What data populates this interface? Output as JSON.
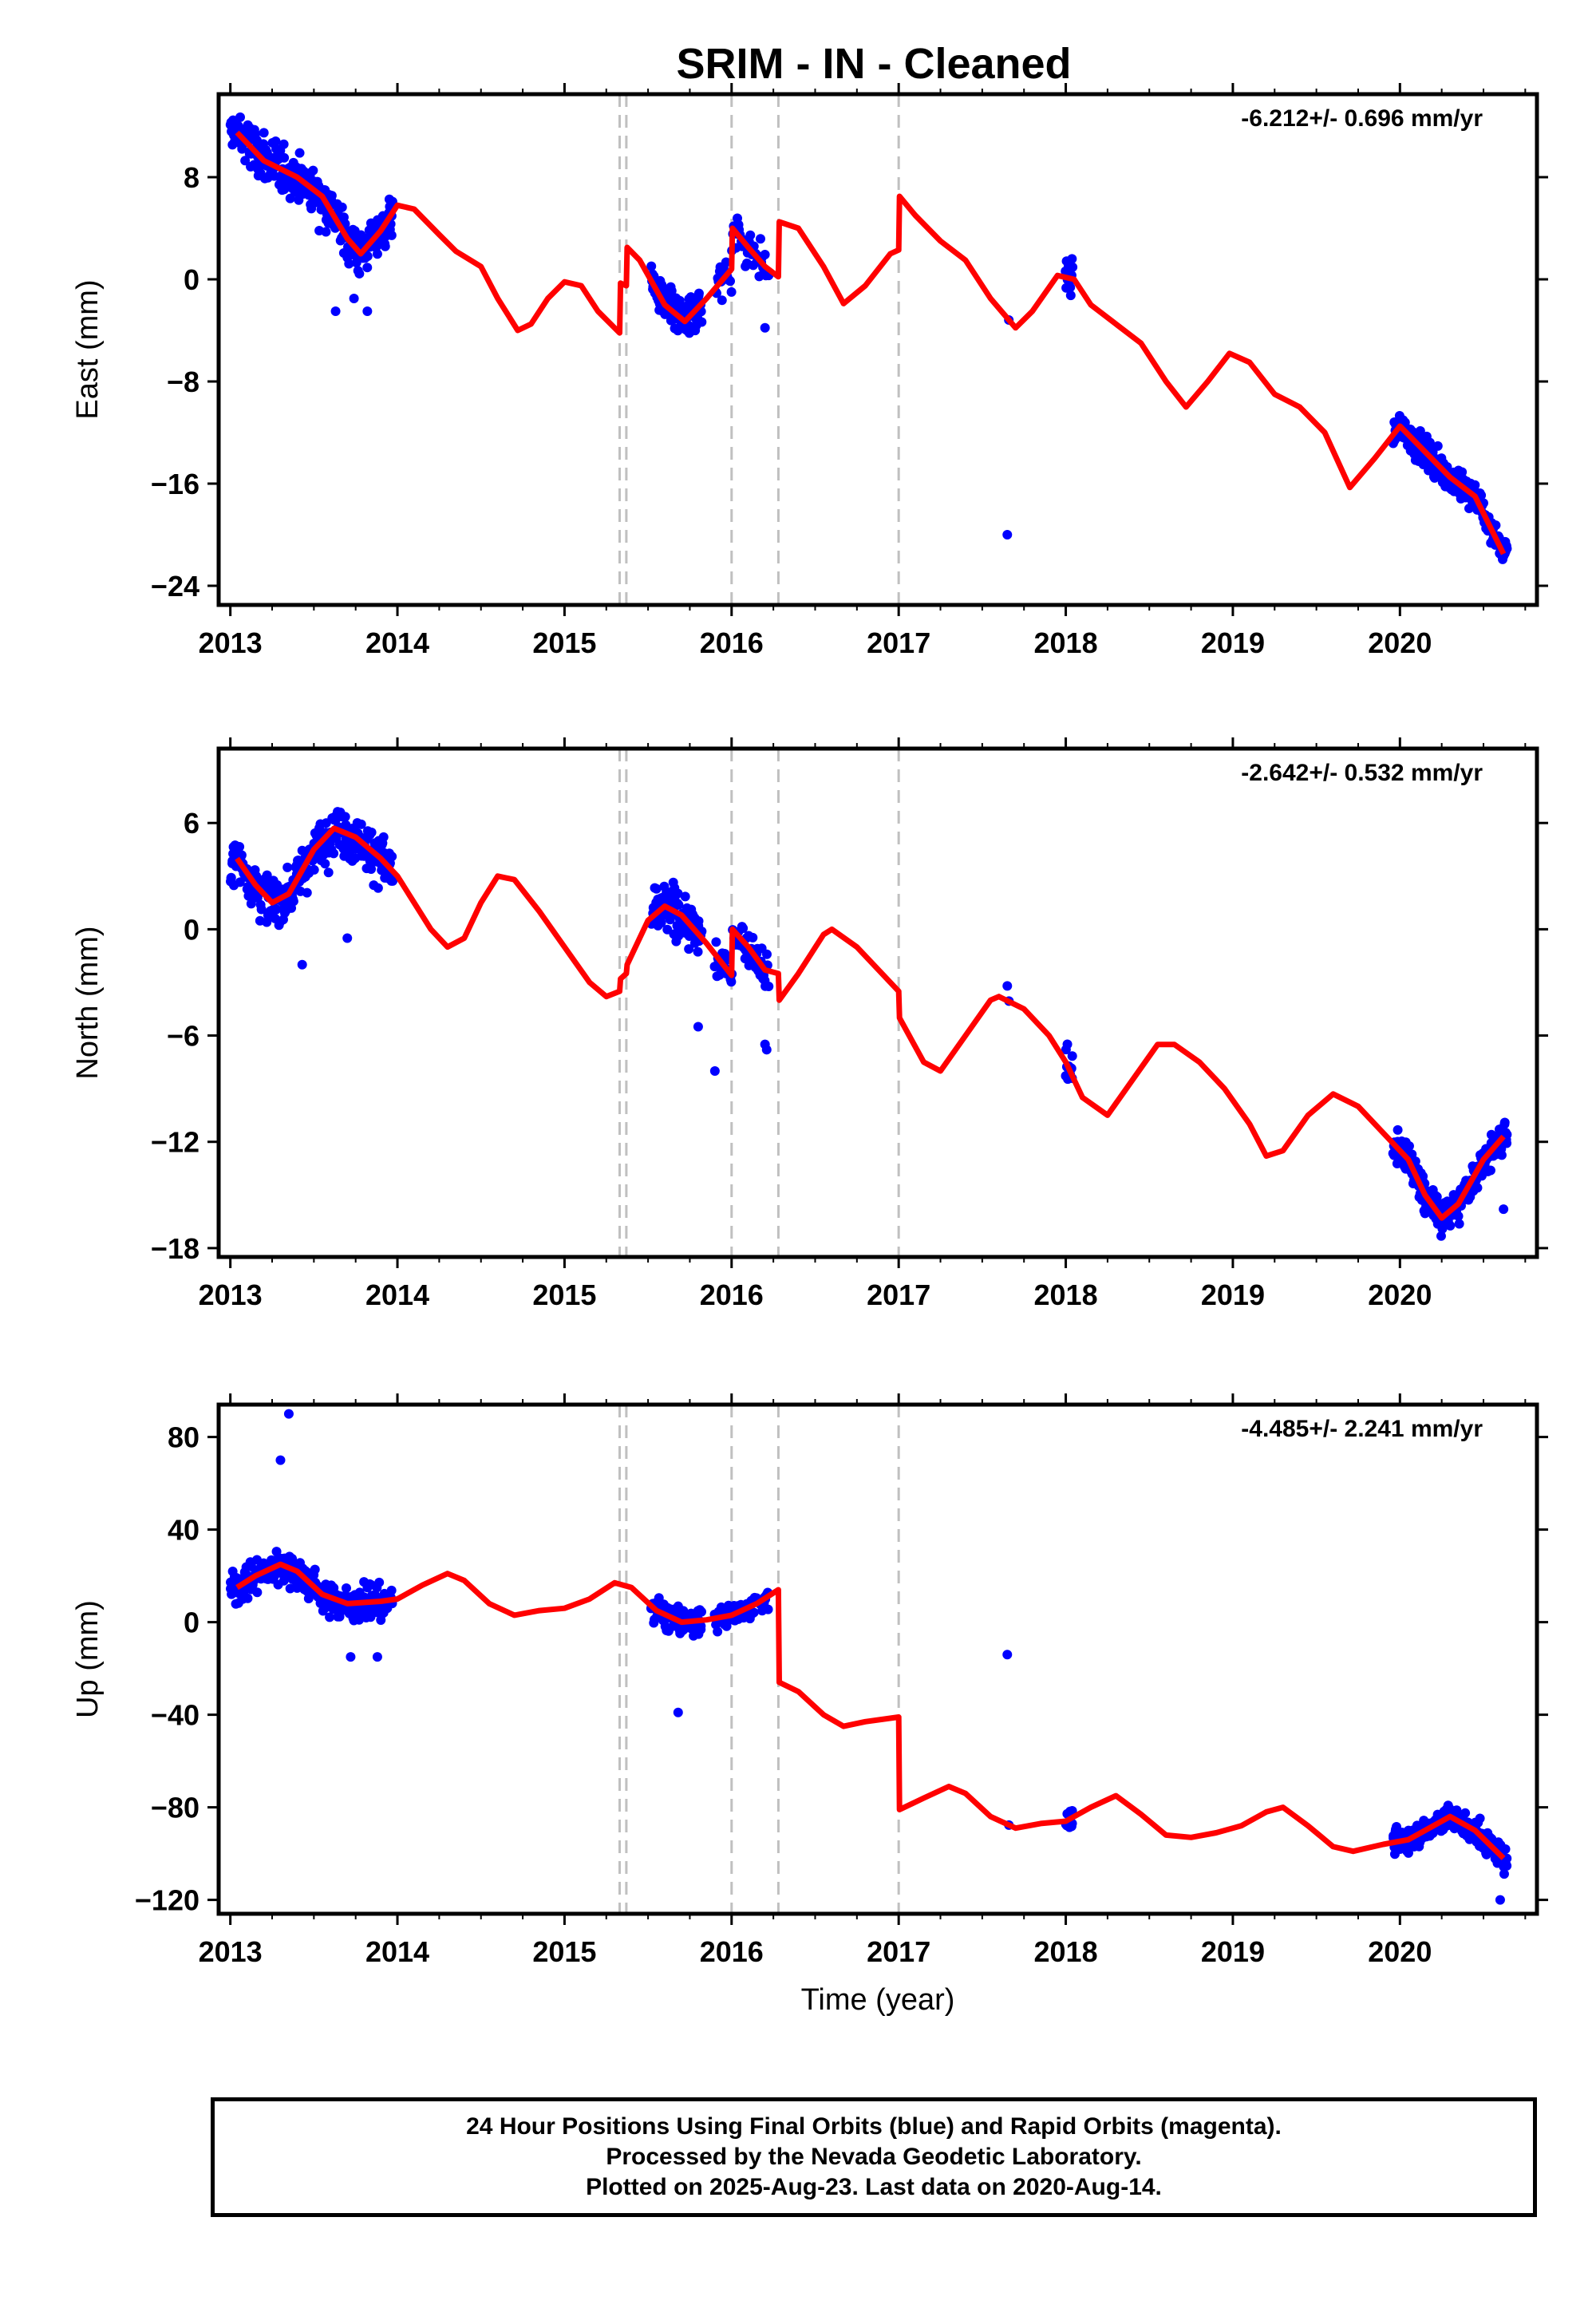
{
  "title": "SRIM  - IN - Cleaned",
  "footer": {
    "line1": "24 Hour Positions Using Final Orbits (blue) and Rapid Orbits (magenta).",
    "line2": "Processed by the Nevada Geodetic Laboratory.",
    "line3": "Plotted on 2025-Aug-23. Last data on 2020-Aug-14."
  },
  "colors": {
    "data": "#0000ff",
    "model": "#ff0000",
    "offsets": "#c0c0c0",
    "frame": "#000000"
  },
  "chart_data": [
    {
      "type": "scatter",
      "ylabel": "East (mm)",
      "xlabel": "",
      "rate_label": "-6.212+/- 0.696 mm/yr",
      "xlim": [
        2012.93,
        2020.82
      ],
      "ylim": [
        -25.5,
        14.5
      ],
      "xticks": [
        2013,
        2014,
        2015,
        2016,
        2017,
        2018,
        2019,
        2020
      ],
      "xtick_labels": [
        "2013",
        "2014",
        "2015",
        "2016",
        "2017",
        "2018",
        "2019",
        "2020"
      ],
      "yticks": [
        8,
        0,
        -8,
        -16,
        -24
      ],
      "ytick_labels": [
        "8",
        "0",
        "−8",
        "−16",
        "−24"
      ],
      "offset_lines": [
        2015.33,
        2015.37,
        2016.0,
        2016.28,
        2017.0
      ],
      "model": [
        [
          2013.04,
          11.5
        ],
        [
          2013.2,
          9.3
        ],
        [
          2013.4,
          8
        ],
        [
          2013.55,
          6.5
        ],
        [
          2013.7,
          3.2
        ],
        [
          2013.78,
          2
        ],
        [
          2013.9,
          3.8
        ],
        [
          2014.0,
          5.8
        ],
        [
          2014.1,
          5.5
        ],
        [
          2014.25,
          3.5
        ],
        [
          2014.35,
          2.2
        ],
        [
          2014.5,
          1
        ],
        [
          2014.6,
          -1.5
        ],
        [
          2014.72,
          -4
        ],
        [
          2014.8,
          -3.5
        ],
        [
          2014.9,
          -1.5
        ],
        [
          2015.0,
          -0.2
        ],
        [
          2015.1,
          -0.5
        ],
        [
          2015.2,
          -2.5
        ],
        [
          2015.33,
          -4.2
        ],
        [
          2015.335,
          -0.3
        ],
        [
          2015.37,
          -0.5
        ],
        [
          2015.375,
          2.5
        ],
        [
          2015.45,
          1.5
        ],
        [
          2015.6,
          -2
        ],
        [
          2015.72,
          -3.3
        ],
        [
          2015.85,
          -1.5
        ],
        [
          2016.0,
          0.8
        ],
        [
          2016.005,
          4
        ],
        [
          2016.1,
          2.5
        ],
        [
          2016.2,
          1
        ],
        [
          2016.28,
          0.2
        ],
        [
          2016.285,
          4.5
        ],
        [
          2016.4,
          4
        ],
        [
          2016.55,
          1
        ],
        [
          2016.67,
          -1.9
        ],
        [
          2016.8,
          -0.5
        ],
        [
          2016.95,
          2
        ],
        [
          2017.0,
          2.3
        ],
        [
          2017.005,
          6.5
        ],
        [
          2017.1,
          5
        ],
        [
          2017.25,
          3
        ],
        [
          2017.4,
          1.5
        ],
        [
          2017.55,
          -1.5
        ],
        [
          2017.7,
          -3.8
        ],
        [
          2017.8,
          -2.5
        ],
        [
          2017.95,
          0.3
        ],
        [
          2018.05,
          0
        ],
        [
          2018.15,
          -2
        ],
        [
          2018.3,
          -3.5
        ],
        [
          2018.45,
          -5
        ],
        [
          2018.6,
          -8
        ],
        [
          2018.72,
          -10
        ],
        [
          2018.85,
          -8
        ],
        [
          2018.98,
          -5.8
        ],
        [
          2019.1,
          -6.5
        ],
        [
          2019.25,
          -9
        ],
        [
          2019.4,
          -10
        ],
        [
          2019.55,
          -12
        ],
        [
          2019.7,
          -16.3
        ],
        [
          2019.85,
          -14
        ],
        [
          2020.0,
          -11.5
        ],
        [
          2020.15,
          -13.5
        ],
        [
          2020.3,
          -15.5
        ],
        [
          2020.45,
          -17
        ],
        [
          2020.62,
          -21.5
        ]
      ],
      "segments": [
        {
          "x0": 2013.0,
          "x1": 2013.97,
          "n": 300,
          "noise": 2.2,
          "outliers": [
            [
              2013.63,
              -2.5
            ],
            [
              2013.82,
              -2.5
            ],
            [
              2013.74,
              -1.5
            ]
          ]
        },
        {
          "x0": 2015.52,
          "x1": 2015.82,
          "n": 120,
          "noise": 1.8,
          "outliers": []
        },
        {
          "x0": 2015.9,
          "x1": 2016.22,
          "n": 60,
          "noise": 1.9,
          "outliers": [
            [
              2016.2,
              -3.8
            ]
          ]
        },
        {
          "x0": 2017.64,
          "x1": 2017.68,
          "n": 1,
          "noise": 0.1,
          "outliers": [
            [
              2017.65,
              -20
            ]
          ]
        },
        {
          "x0": 2018.0,
          "x1": 2018.04,
          "n": 14,
          "noise": 1.6,
          "outliers": []
        },
        {
          "x0": 2019.96,
          "x1": 2020.64,
          "n": 260,
          "noise": 1.3,
          "outliers": []
        }
      ]
    },
    {
      "type": "scatter",
      "ylabel": "North (mm)",
      "xlabel": "",
      "rate_label": "-2.642+/- 0.532 mm/yr",
      "xlim": [
        2012.93,
        2020.82
      ],
      "ylim": [
        -18.5,
        10.2
      ],
      "xticks": [
        2013,
        2014,
        2015,
        2016,
        2017,
        2018,
        2019,
        2020
      ],
      "xtick_labels": [
        "2013",
        "2014",
        "2015",
        "2016",
        "2017",
        "2018",
        "2019",
        "2020"
      ],
      "yticks": [
        6,
        0,
        -6,
        -12,
        -18
      ],
      "ytick_labels": [
        "6",
        "0",
        "−6",
        "−12",
        "−18"
      ],
      "offset_lines": [
        2015.33,
        2015.37,
        2016.0,
        2016.28,
        2017.0
      ],
      "model": [
        [
          2013.04,
          4
        ],
        [
          2013.15,
          2.5
        ],
        [
          2013.25,
          1.5
        ],
        [
          2013.35,
          2
        ],
        [
          2013.5,
          4.5
        ],
        [
          2013.62,
          5.7
        ],
        [
          2013.75,
          5.2
        ],
        [
          2013.9,
          4
        ],
        [
          2014.0,
          3
        ],
        [
          2014.1,
          1.5
        ],
        [
          2014.2,
          0
        ],
        [
          2014.3,
          -1
        ],
        [
          2014.4,
          -0.5
        ],
        [
          2014.5,
          1.5
        ],
        [
          2014.6,
          3
        ],
        [
          2014.7,
          2.8
        ],
        [
          2014.85,
          1
        ],
        [
          2015.0,
          -1
        ],
        [
          2015.15,
          -3
        ],
        [
          2015.25,
          -3.8
        ],
        [
          2015.33,
          -3.5
        ],
        [
          2015.335,
          -2.8
        ],
        [
          2015.37,
          -2.5
        ],
        [
          2015.375,
          -2
        ],
        [
          2015.5,
          0.5
        ],
        [
          2015.6,
          1.3
        ],
        [
          2015.7,
          0.8
        ],
        [
          2015.85,
          -0.8
        ],
        [
          2016.0,
          -2.6
        ],
        [
          2016.005,
          0
        ],
        [
          2016.1,
          -1
        ],
        [
          2016.2,
          -2.3
        ],
        [
          2016.28,
          -2.5
        ],
        [
          2016.285,
          -4
        ],
        [
          2016.4,
          -2.5
        ],
        [
          2016.55,
          -0.3
        ],
        [
          2016.6,
          0
        ],
        [
          2016.75,
          -1
        ],
        [
          2016.9,
          -2.5
        ],
        [
          2017.0,
          -3.5
        ],
        [
          2017.005,
          -5
        ],
        [
          2017.15,
          -7.5
        ],
        [
          2017.25,
          -8
        ],
        [
          2017.4,
          -6
        ],
        [
          2017.55,
          -4
        ],
        [
          2017.6,
          -3.8
        ],
        [
          2017.75,
          -4.5
        ],
        [
          2017.9,
          -6
        ],
        [
          2018.0,
          -7.5
        ],
        [
          2018.1,
          -9.5
        ],
        [
          2018.25,
          -10.5
        ],
        [
          2018.4,
          -8.5
        ],
        [
          2018.55,
          -6.5
        ],
        [
          2018.65,
          -6.5
        ],
        [
          2018.8,
          -7.5
        ],
        [
          2018.95,
          -9
        ],
        [
          2019.1,
          -11
        ],
        [
          2019.2,
          -12.8
        ],
        [
          2019.3,
          -12.5
        ],
        [
          2019.45,
          -10.5
        ],
        [
          2019.6,
          -9.3
        ],
        [
          2019.75,
          -10
        ],
        [
          2019.9,
          -11.5
        ],
        [
          2020.05,
          -13
        ],
        [
          2020.15,
          -15
        ],
        [
          2020.25,
          -16.3
        ],
        [
          2020.35,
          -15.5
        ],
        [
          2020.5,
          -13
        ],
        [
          2020.62,
          -11.7
        ]
      ],
      "segments": [
        {
          "x0": 2013.0,
          "x1": 2013.97,
          "n": 300,
          "noise": 1.6,
          "outliers": [
            [
              2013.43,
              -2
            ],
            [
              2013.7,
              -0.5
            ]
          ]
        },
        {
          "x0": 2015.52,
          "x1": 2015.82,
          "n": 110,
          "noise": 1.5,
          "outliers": [
            [
              2015.8,
              -5.5
            ]
          ]
        },
        {
          "x0": 2015.9,
          "x1": 2016.22,
          "n": 60,
          "noise": 1.4,
          "outliers": [
            [
              2015.9,
              -8
            ],
            [
              2016.2,
              -6.5
            ],
            [
              2016.21,
              -6.8
            ]
          ]
        },
        {
          "x0": 2017.64,
          "x1": 2017.68,
          "n": 1,
          "noise": 0.1,
          "outliers": [
            [
              2017.65,
              -3.2
            ]
          ]
        },
        {
          "x0": 2018.0,
          "x1": 2018.04,
          "n": 14,
          "noise": 1.2,
          "outliers": []
        },
        {
          "x0": 2019.96,
          "x1": 2020.64,
          "n": 260,
          "noise": 1.1,
          "outliers": [
            [
              2020.62,
              -15.8
            ]
          ]
        }
      ]
    },
    {
      "type": "scatter",
      "ylabel": "Up (mm)",
      "xlabel": "Time (year)",
      "rate_label": "-4.485+/- 2.241 mm/yr",
      "xlim": [
        2012.93,
        2020.82
      ],
      "ylim": [
        -126,
        94
      ],
      "xticks": [
        2013,
        2014,
        2015,
        2016,
        2017,
        2018,
        2019,
        2020
      ],
      "xtick_labels": [
        "2013",
        "2014",
        "2015",
        "2016",
        "2017",
        "2018",
        "2019",
        "2020"
      ],
      "yticks": [
        80,
        40,
        0,
        -40,
        -80,
        -120
      ],
      "ytick_labels": [
        "80",
        "40",
        "0",
        "−40",
        "−80",
        "−120"
      ],
      "offset_lines": [
        2015.33,
        2015.37,
        2016.0,
        2016.28,
        2017.0
      ],
      "model": [
        [
          2013.04,
          15
        ],
        [
          2013.15,
          20
        ],
        [
          2013.3,
          25
        ],
        [
          2013.4,
          22
        ],
        [
          2013.55,
          12
        ],
        [
          2013.7,
          8
        ],
        [
          2013.9,
          9
        ],
        [
          2014.0,
          10
        ],
        [
          2014.15,
          16
        ],
        [
          2014.3,
          21
        ],
        [
          2014.4,
          18
        ],
        [
          2014.55,
          8
        ],
        [
          2014.7,
          3
        ],
        [
          2014.85,
          5
        ],
        [
          2015.0,
          6
        ],
        [
          2015.15,
          10
        ],
        [
          2015.3,
          17
        ],
        [
          2015.4,
          15
        ],
        [
          2015.55,
          5
        ],
        [
          2015.7,
          0
        ],
        [
          2015.85,
          1
        ],
        [
          2016.0,
          3
        ],
        [
          2016.15,
          8
        ],
        [
          2016.28,
          14
        ],
        [
          2016.285,
          -26
        ],
        [
          2016.4,
          -30
        ],
        [
          2016.55,
          -40
        ],
        [
          2016.67,
          -45
        ],
        [
          2016.8,
          -43
        ],
        [
          2017.0,
          -41
        ],
        [
          2017.005,
          -81
        ],
        [
          2017.15,
          -76
        ],
        [
          2017.3,
          -71
        ],
        [
          2017.4,
          -74
        ],
        [
          2017.55,
          -84
        ],
        [
          2017.7,
          -89
        ],
        [
          2017.85,
          -87
        ],
        [
          2018.0,
          -86
        ],
        [
          2018.15,
          -80
        ],
        [
          2018.3,
          -75
        ],
        [
          2018.45,
          -83
        ],
        [
          2018.6,
          -92
        ],
        [
          2018.75,
          -93
        ],
        [
          2018.9,
          -91
        ],
        [
          2019.05,
          -88
        ],
        [
          2019.2,
          -82
        ],
        [
          2019.3,
          -80
        ],
        [
          2019.45,
          -88
        ],
        [
          2019.6,
          -97
        ],
        [
          2019.72,
          -99
        ],
        [
          2019.9,
          -96
        ],
        [
          2020.05,
          -94
        ],
        [
          2020.2,
          -88
        ],
        [
          2020.3,
          -84
        ],
        [
          2020.45,
          -90
        ],
        [
          2020.62,
          -102
        ]
      ],
      "segments": [
        {
          "x0": 2013.0,
          "x1": 2013.97,
          "n": 300,
          "noise": 8,
          "outliers": [
            [
              2013.35,
              90
            ],
            [
              2013.3,
              70
            ],
            [
              2013.72,
              -15
            ],
            [
              2013.88,
              -15
            ]
          ]
        },
        {
          "x0": 2015.52,
          "x1": 2015.82,
          "n": 110,
          "noise": 7,
          "outliers": [
            [
              2015.68,
              -39
            ]
          ]
        },
        {
          "x0": 2015.9,
          "x1": 2016.22,
          "n": 60,
          "noise": 6,
          "outliers": []
        },
        {
          "x0": 2017.64,
          "x1": 2017.68,
          "n": 1,
          "noise": 0.1,
          "outliers": [
            [
              2017.65,
              -14
            ]
          ]
        },
        {
          "x0": 2018.0,
          "x1": 2018.04,
          "n": 14,
          "noise": 4,
          "outliers": []
        },
        {
          "x0": 2019.96,
          "x1": 2020.64,
          "n": 260,
          "noise": 6,
          "outliers": [
            [
              2020.6,
              -120
            ]
          ]
        }
      ]
    }
  ]
}
